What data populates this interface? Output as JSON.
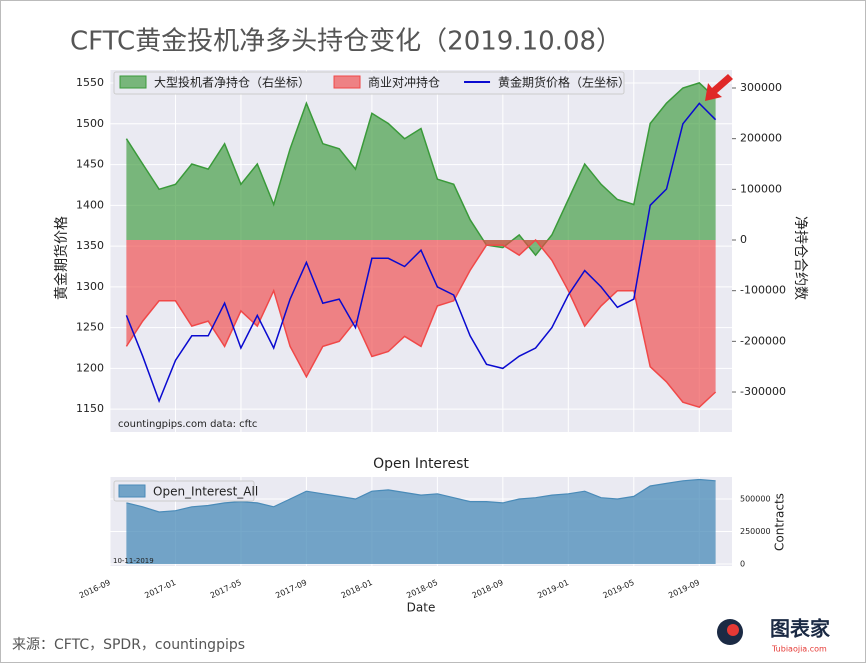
{
  "title": "CFTC黄金投机净多头持仓变化（2019.10.08）",
  "source": "来源：CFTC，SPDR，countingpips",
  "logo": {
    "name": "图表家",
    "site": "Tubiaojia.com"
  },
  "chart_data": [
    {
      "type": "line",
      "note": "countingpips.com    data: cftc",
      "ylabel": "黄金期货价格",
      "y2label": "净持仓合约数",
      "x": [
        "2016-10",
        "2016-11",
        "2016-12",
        "2017-01",
        "2017-02",
        "2017-03",
        "2017-04",
        "2017-05",
        "2017-06",
        "2017-07",
        "2017-08",
        "2017-09",
        "2017-10",
        "2017-11",
        "2017-12",
        "2018-01",
        "2018-02",
        "2018-03",
        "2018-04",
        "2018-05",
        "2018-06",
        "2018-07",
        "2018-08",
        "2018-09",
        "2018-10",
        "2018-11",
        "2018-12",
        "2019-01",
        "2019-02",
        "2019-03",
        "2019-04",
        "2019-05",
        "2019-06",
        "2019-07",
        "2019-08",
        "2019-09",
        "2019-10"
      ],
      "xlim": [
        "2016-09",
        "2019-11"
      ],
      "xticks": [
        "2016-09",
        "2017-01",
        "2017-05",
        "2017-09",
        "2018-01",
        "2018-05",
        "2018-09",
        "2019-01",
        "2019-05",
        "2019-09"
      ],
      "ylim": [
        1122,
        1566
      ],
      "yticks": [
        1150,
        1200,
        1250,
        1300,
        1350,
        1400,
        1450,
        1500,
        1550
      ],
      "y2lim": [
        -378900,
        335500
      ],
      "y2ticks": [
        -300000,
        -200000,
        -100000,
        0,
        100000,
        200000,
        300000
      ],
      "grid": true,
      "legend": "upper left",
      "series": [
        {
          "name": "大型投机者净持仓（右坐标）",
          "kind": "area",
          "axis": "y2",
          "color": "#3a9a3a",
          "values": [
            200000,
            150000,
            100000,
            110000,
            150000,
            140000,
            190000,
            110000,
            150000,
            70000,
            180000,
            270000,
            190000,
            180000,
            140000,
            250000,
            230000,
            200000,
            220000,
            120000,
            110000,
            40000,
            -10000,
            -15000,
            10000,
            -30000,
            10000,
            80000,
            150000,
            110000,
            80000,
            70000,
            230000,
            270000,
            300000,
            310000,
            280000
          ]
        },
        {
          "name": "商业对冲持仓",
          "kind": "area",
          "axis": "y2",
          "color": "#f04848",
          "values": [
            -210000,
            -160000,
            -120000,
            -120000,
            -170000,
            -160000,
            -210000,
            -140000,
            -170000,
            -100000,
            -210000,
            -270000,
            -210000,
            -200000,
            -160000,
            -230000,
            -220000,
            -190000,
            -210000,
            -130000,
            -120000,
            -60000,
            -10000,
            -10000,
            -30000,
            0,
            -40000,
            -100000,
            -170000,
            -130000,
            -100000,
            -100000,
            -250000,
            -280000,
            -320000,
            -330000,
            -300000
          ]
        },
        {
          "name": "黄金期货价格（左坐标）",
          "kind": "line",
          "axis": "y",
          "color": "#0a0ad0",
          "values": [
            1265,
            1215,
            1160,
            1210,
            1240,
            1240,
            1280,
            1225,
            1265,
            1225,
            1285,
            1330,
            1280,
            1285,
            1250,
            1335,
            1335,
            1325,
            1345,
            1300,
            1290,
            1240,
            1205,
            1200,
            1215,
            1225,
            1250,
            1290,
            1320,
            1300,
            1275,
            1285,
            1400,
            1420,
            1500,
            1525,
            1505
          ]
        }
      ]
    },
    {
      "type": "area",
      "title": "Open Interest",
      "xlabel": "Date",
      "ylabel": "Contracts",
      "note": "10-11-2019",
      "x": [
        "2016-10",
        "2016-11",
        "2016-12",
        "2017-01",
        "2017-02",
        "2017-03",
        "2017-04",
        "2017-05",
        "2017-06",
        "2017-07",
        "2017-08",
        "2017-09",
        "2017-10",
        "2017-11",
        "2017-12",
        "2018-01",
        "2018-02",
        "2018-03",
        "2018-04",
        "2018-05",
        "2018-06",
        "2018-07",
        "2018-08",
        "2018-09",
        "2018-10",
        "2018-11",
        "2018-12",
        "2019-01",
        "2019-02",
        "2019-03",
        "2019-04",
        "2019-05",
        "2019-06",
        "2019-07",
        "2019-08",
        "2019-09",
        "2019-10"
      ],
      "xlim": [
        "2016-09",
        "2019-11"
      ],
      "xticks": [
        "2016-09",
        "2017-01",
        "2017-05",
        "2017-09",
        "2018-01",
        "2018-05",
        "2018-09",
        "2019-01",
        "2019-05",
        "2019-09"
      ],
      "ylim": [
        -15000,
        669000
      ],
      "yticks": [
        0,
        250000,
        500000
      ],
      "grid": true,
      "legend": "upper left",
      "series": [
        {
          "name": "Open_Interest_All",
          "color": "#4a8bb8",
          "values": [
            470000,
            440000,
            400000,
            410000,
            440000,
            450000,
            470000,
            480000,
            470000,
            440000,
            500000,
            560000,
            540000,
            520000,
            500000,
            560000,
            570000,
            550000,
            530000,
            540000,
            510000,
            480000,
            480000,
            470000,
            500000,
            510000,
            530000,
            540000,
            560000,
            510000,
            500000,
            520000,
            600000,
            620000,
            640000,
            650000,
            640000
          ]
        }
      ]
    }
  ]
}
